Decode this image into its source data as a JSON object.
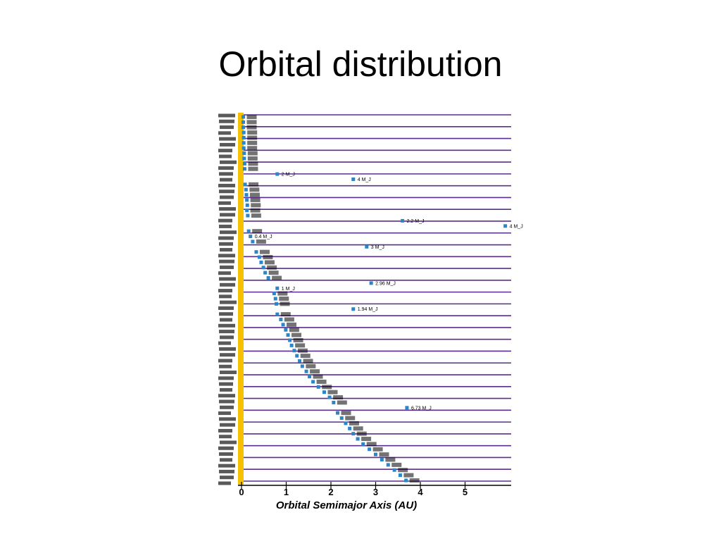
{
  "slide": {
    "title": "Orbital distribution"
  },
  "chart_data": {
    "type": "scatter",
    "title": "",
    "xlabel": "Orbital Semimajor Axis  (AU)",
    "ylabel": "",
    "xlim": [
      0,
      6
    ],
    "x_ticks": [
      "0",
      "1",
      "2",
      "3",
      "4",
      "5"
    ],
    "grid": "horizontal row lines",
    "colors": {
      "row_line": "#5b2d8e",
      "planet": "#2a86c8",
      "sun_band": "#f6c200"
    },
    "stars": {
      "count": 64,
      "labels_legible": false
    },
    "planets": [
      {
        "x": 0.04
      },
      {
        "x": 0.04
      },
      {
        "x": 0.04
      },
      {
        "x": 0.05
      },
      {
        "x": 0.05
      },
      {
        "x": 0.05
      },
      {
        "x": 0.05
      },
      {
        "x": 0.06
      },
      {
        "x": 0.06
      },
      {
        "x": 0.07
      },
      {
        "x": 0.07
      },
      {
        "x": 0.8,
        "ann": "2 M_J"
      },
      {
        "x": 2.5,
        "ann": "4 M_J"
      },
      {
        "x": 0.08
      },
      {
        "x": 0.1
      },
      {
        "x": 0.11
      },
      {
        "x": 0.12
      },
      {
        "x": 0.13
      },
      {
        "x": 0.12
      },
      {
        "x": 0.14
      },
      {
        "x": 3.6,
        "ann": "2.2 M_J"
      },
      {
        "x": 5.9,
        "ann": "4 M_J"
      },
      {
        "x": 0.16
      },
      {
        "x": 0.2,
        "ann": "0.4 M_J"
      },
      {
        "x": 0.25
      },
      {
        "x": 2.8,
        "ann": "3 M_J"
      },
      {
        "x": 0.33
      },
      {
        "x": 0.4
      },
      {
        "x": 0.44
      },
      {
        "x": 0.49
      },
      {
        "x": 0.53
      },
      {
        "x": 0.6
      },
      {
        "x": 2.9,
        "ann": "2.96 M_J"
      },
      {
        "x": 0.8,
        "ann": "1 M_J"
      },
      {
        "x": 0.73
      },
      {
        "x": 0.76
      },
      {
        "x": 0.78
      },
      {
        "x": 2.5,
        "ann": "1.94 M_J"
      },
      {
        "x": 0.8
      },
      {
        "x": 0.88
      },
      {
        "x": 0.93
      },
      {
        "x": 0.99
      },
      {
        "x": 1.04
      },
      {
        "x": 1.08
      },
      {
        "x": 1.12
      },
      {
        "x": 1.18
      },
      {
        "x": 1.24
      },
      {
        "x": 1.3
      },
      {
        "x": 1.36
      },
      {
        "x": 1.45
      },
      {
        "x": 1.52
      },
      {
        "x": 1.6
      },
      {
        "x": 1.72
      },
      {
        "x": 1.85
      },
      {
        "x": 1.97
      },
      {
        "x": 2.06
      },
      {
        "x": 3.7,
        "ann": "6.73 M_J"
      },
      {
        "x": 2.15
      },
      {
        "x": 2.24
      },
      {
        "x": 2.33
      },
      {
        "x": 2.42
      },
      {
        "x": 2.5
      },
      {
        "x": 2.6
      },
      {
        "x": 2.72
      },
      {
        "x": 2.86
      },
      {
        "x": 3.0
      },
      {
        "x": 3.14
      },
      {
        "x": 3.28
      },
      {
        "x": 3.42
      },
      {
        "x": 3.55
      },
      {
        "x": 3.68
      }
    ]
  }
}
